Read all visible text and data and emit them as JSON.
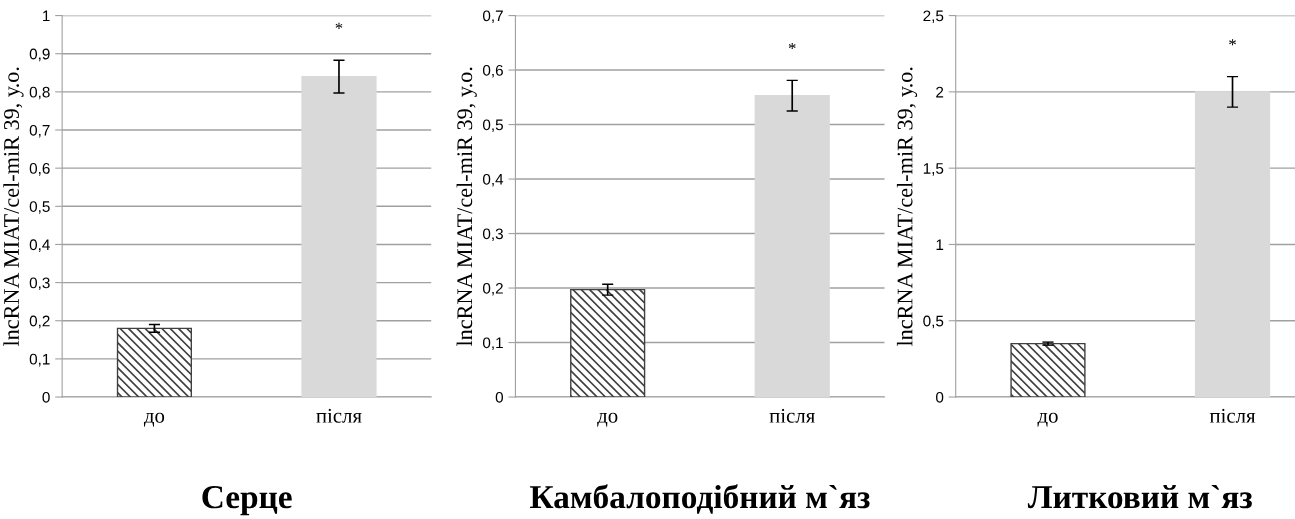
{
  "chart_data": [
    {
      "type": "bar",
      "title": "Серце",
      "ylabel": "lncRNA MIAT/cel-miR 39, у.о.",
      "categories": [
        "до",
        "після"
      ],
      "values": [
        0.18,
        0.84
      ],
      "errors": [
        0.01,
        0.043
      ],
      "colors": [
        "#404040",
        "#d9d9d9"
      ],
      "ylim": [
        0,
        1
      ],
      "yticks": [
        0,
        {
          "value": 0.1,
          "label": "0,1"
        },
        {
          "value": 0.2,
          "label": "0,2"
        },
        {
          "value": 0.3,
          "label": "0,3"
        },
        {
          "value": 0.4,
          "label": "0,4"
        },
        {
          "value": 0.5,
          "label": "0,5"
        },
        {
          "value": 0.6,
          "label": "0,6"
        },
        {
          "value": 0.7,
          "label": "0,7"
        },
        {
          "value": 0.8,
          "label": "0,8"
        },
        {
          "value": 0.9,
          "label": "0,9"
        },
        1
      ],
      "grid": "y",
      "annotations": [
        "*"
      ]
    },
    {
      "type": "bar",
      "title": "Камбалоподібний м`яз",
      "ylabel": "lncRNA MIAT/cel-miR 39, у.о.",
      "categories": [
        "до",
        "після"
      ],
      "values": [
        0.197,
        0.553
      ],
      "errors": [
        0.01,
        0.028
      ],
      "colors": [
        "#404040",
        "#d9d9d9"
      ],
      "ylim": [
        0,
        0.7
      ],
      "yticks": [
        0,
        {
          "value": 0.1,
          "label": "0,1"
        },
        {
          "value": 0.2,
          "label": "0,2"
        },
        {
          "value": 0.3,
          "label": "0,3"
        },
        {
          "value": 0.4,
          "label": "0,4"
        },
        {
          "value": 0.5,
          "label": "0,5"
        },
        {
          "value": 0.6,
          "label": "0,6"
        },
        {
          "value": 0.7,
          "label": "0,7"
        }
      ],
      "grid": "y",
      "annotations": [
        "*"
      ]
    },
    {
      "type": "bar",
      "title": "Литковий м`яз",
      "ylabel": "lncRNA MIAT/cel-miR 39, у.о.",
      "categories": [
        "до",
        "після"
      ],
      "values": [
        0.35,
        2.0
      ],
      "errors": [
        0.01,
        0.1
      ],
      "colors": [
        "#404040",
        "#d9d9d9"
      ],
      "ylim": [
        0,
        2.5
      ],
      "yticks": [
        0,
        {
          "value": 0.5,
          "label": "0,5"
        },
        1,
        {
          "value": 1.5,
          "label": "1,5"
        },
        2,
        {
          "value": 2.5,
          "label": "2,5"
        }
      ],
      "grid": "y",
      "annotations": [
        "*"
      ]
    }
  ]
}
